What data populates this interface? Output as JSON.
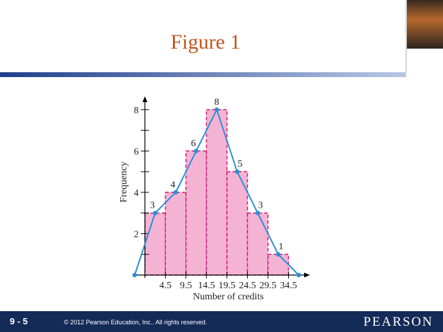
{
  "slide": {
    "title": "Figure 1",
    "slide_number": "9 - 5",
    "copyright": "© 2012 Pearson Education, Inc.. All rights reserved.",
    "brand": "PEARSON"
  },
  "chart_data": {
    "type": "histogram",
    "xlabel": "Number of credits",
    "ylabel": "Frequency",
    "bins": [
      -0.5,
      4.5,
      9.5,
      14.5,
      19.5,
      24.5,
      29.5,
      34.5
    ],
    "values": [
      3,
      4,
      6,
      8,
      5,
      3,
      1
    ],
    "color": "#f5b3d3",
    "edge_color": "#d41a70",
    "polygon": {
      "color": "#2b8fd6",
      "x": [
        -3,
        2,
        7,
        12,
        17,
        22,
        27,
        32,
        37
      ],
      "values": [
        0,
        3,
        4,
        6,
        8,
        5,
        3,
        1,
        0
      ]
    },
    "xlim": [
      -3.5,
      39.5
    ],
    "ylim": [
      0,
      8.6
    ],
    "xticks": [
      4.5,
      9.5,
      14.5,
      19.5,
      24.5,
      29.5,
      34.5
    ],
    "yticks": [
      2,
      4,
      6,
      8
    ],
    "yticks_minor": [
      1,
      3,
      5,
      7
    ]
  }
}
